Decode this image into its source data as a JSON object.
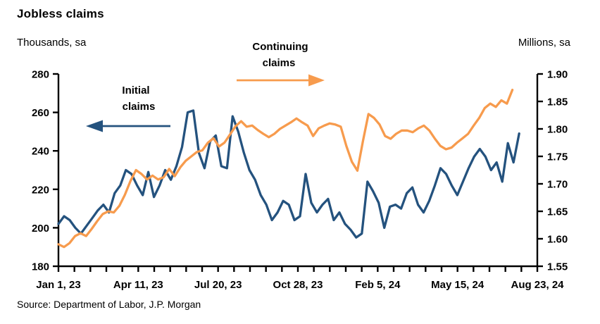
{
  "title": "Jobless claims",
  "left_axis": {
    "unit_label": "Thousands, sa",
    "tick_labels": [
      "280",
      "260",
      "240",
      "220",
      "200",
      "180"
    ],
    "min": 180,
    "max": 280
  },
  "right_axis": {
    "unit_label": "Millions, sa",
    "tick_labels": [
      "1.90",
      "1.85",
      "1.80",
      "1.75",
      "1.70",
      "1.65",
      "1.60",
      "1.55"
    ],
    "min": 1.55,
    "max": 1.9
  },
  "x_axis": {
    "tick_labels": [
      "Jan 1, 23",
      "Apr 11, 23",
      "Jul 20, 23",
      "Oct 28, 23",
      "Feb 5, 24",
      "May 15, 24",
      "Aug 23, 24"
    ],
    "minor_ticks_per_label_interval": 5
  },
  "annotations": {
    "initial": {
      "line1": "Initial",
      "line2": "claims",
      "arrow_direction": "left"
    },
    "continuing": {
      "line1": "Continuing",
      "line2": "claims",
      "arrow_direction": "right"
    }
  },
  "source": "Source: Department of Labor, J.P. Morgan",
  "colors": {
    "initial_claims": "#24527E",
    "continuing_claims": "#F79B4D",
    "axis": "#000000"
  },
  "chart_data": {
    "type": "line",
    "title": "Jobless claims",
    "frequency": "weekly (values read from chart)",
    "x_range": [
      "Jan 1, 23",
      "Aug 23, 24"
    ],
    "x_tick_labels": [
      "Jan 1, 23",
      "Apr 11, 23",
      "Jul 20, 23",
      "Oct 28, 23",
      "Feb 5, 24",
      "May 15, 24",
      "Aug 23, 24"
    ],
    "left_ylim": [
      180,
      280
    ],
    "right_ylim": [
      1.55,
      1.9
    ],
    "grid": false,
    "legend_position": "in-plot arrow annotations",
    "series": [
      {
        "name": "Initial claims",
        "axis": "left",
        "unit": "Thousands, sa",
        "color": "#24527E",
        "x_start_frac": 0.0,
        "x_end_frac": 0.962,
        "values": [
          202,
          206,
          204,
          200,
          197,
          201,
          205,
          209,
          212,
          208,
          218,
          222,
          230,
          228,
          222,
          217,
          229,
          216,
          222,
          230,
          225,
          232,
          242,
          260,
          261,
          239,
          231,
          245,
          248,
          232,
          231,
          258,
          250,
          239,
          230,
          225,
          217,
          212,
          204,
          208,
          214,
          212,
          204,
          206,
          228,
          213,
          208,
          212,
          215,
          204,
          208,
          202,
          199,
          195,
          197,
          224,
          219,
          213,
          200,
          211,
          212,
          210,
          218,
          221,
          212,
          208,
          214,
          222,
          231,
          228,
          222,
          217,
          224,
          231,
          237,
          241,
          237,
          230,
          234,
          224,
          244,
          234,
          249
        ]
      },
      {
        "name": "Continuing claims",
        "axis": "right",
        "unit": "Millions, sa",
        "color": "#F79B4D",
        "x_start_frac": 0.0,
        "x_end_frac": 0.948,
        "values": [
          1.59,
          1.585,
          1.592,
          1.605,
          1.61,
          1.605,
          1.618,
          1.632,
          1.645,
          1.65,
          1.648,
          1.66,
          1.68,
          1.705,
          1.725,
          1.718,
          1.708,
          1.715,
          1.708,
          1.712,
          1.727,
          1.714,
          1.73,
          1.742,
          1.75,
          1.758,
          1.761,
          1.775,
          1.783,
          1.768,
          1.775,
          1.79,
          1.805,
          1.814,
          1.804,
          1.806,
          1.798,
          1.791,
          1.785,
          1.791,
          1.8,
          1.806,
          1.812,
          1.819,
          1.812,
          1.806,
          1.787,
          1.801,
          1.806,
          1.81,
          1.808,
          1.804,
          1.769,
          1.74,
          1.724,
          1.778,
          1.827,
          1.82,
          1.808,
          1.787,
          1.782,
          1.791,
          1.797,
          1.797,
          1.794,
          1.801,
          1.806,
          1.797,
          1.782,
          1.769,
          1.763,
          1.766,
          1.775,
          1.783,
          1.791,
          1.806,
          1.82,
          1.838,
          1.846,
          1.84,
          1.852,
          1.846,
          1.871
        ]
      }
    ]
  }
}
